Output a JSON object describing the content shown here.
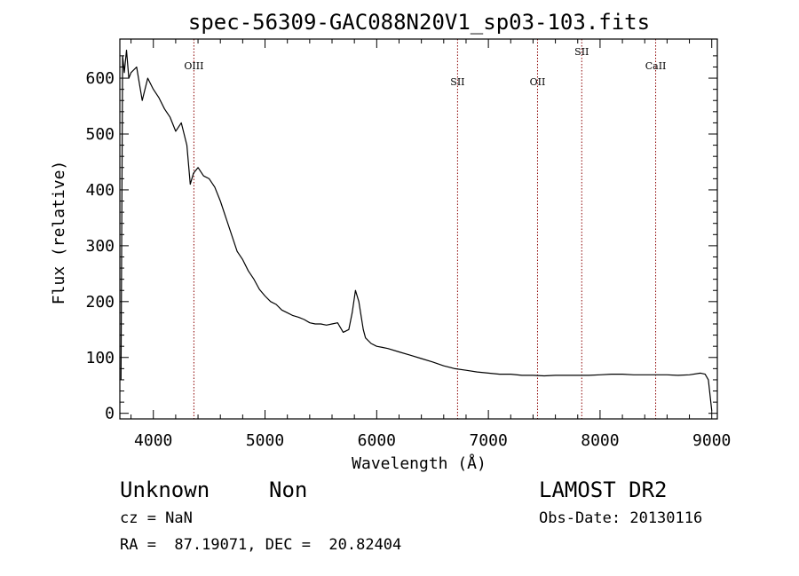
{
  "chart_data": {
    "type": "line",
    "title": "spec-56309-GAC088N20V1_sp03-103.fits",
    "xlabel": "Wavelength (Å)",
    "ylabel": "Flux (relative)",
    "xlim": [
      3700,
      9050
    ],
    "ylim": [
      -10,
      670
    ],
    "xticks": [
      4000,
      5000,
      6000,
      7000,
      8000,
      9000
    ],
    "yticks": [
      0,
      100,
      200,
      300,
      400,
      500,
      600
    ],
    "grid": false,
    "line_color": "#000000",
    "annotation_color": "#8b0000",
    "series": [
      {
        "x": [
          3710,
          3725,
          3740,
          3760,
          3780,
          3800,
          3850,
          3900,
          3950,
          4000,
          4050,
          4100,
          4150,
          4200,
          4250,
          4300,
          4330,
          4360,
          4400,
          4450,
          4500,
          4550,
          4600,
          4650,
          4700,
          4750,
          4800,
          4850,
          4900,
          4950,
          5000,
          5050,
          5100,
          5150,
          5200,
          5250,
          5300,
          5350,
          5400,
          5450,
          5500,
          5550,
          5600,
          5650,
          5700,
          5750,
          5780,
          5810,
          5840,
          5860,
          5880,
          5900,
          5950,
          6000,
          6050,
          6100,
          6200,
          6300,
          6400,
          6500,
          6600,
          6700,
          6800,
          6900,
          7000,
          7100,
          7200,
          7300,
          7400,
          7500,
          7600,
          7700,
          7800,
          7900,
          8000,
          8100,
          8200,
          8300,
          8400,
          8500,
          8600,
          8700,
          8800,
          8900,
          8940,
          8970,
          9000
        ],
        "y": [
          60,
          640,
          610,
          650,
          600,
          610,
          620,
          560,
          600,
          580,
          565,
          545,
          530,
          505,
          520,
          480,
          410,
          430,
          440,
          425,
          420,
          405,
          380,
          350,
          320,
          290,
          275,
          255,
          240,
          222,
          210,
          200,
          195,
          185,
          180,
          175,
          172,
          168,
          162,
          160,
          160,
          158,
          160,
          162,
          145,
          150,
          180,
          220,
          200,
          175,
          150,
          135,
          125,
          120,
          118,
          116,
          110,
          104,
          98,
          92,
          85,
          80,
          77,
          74,
          72,
          70,
          70,
          68,
          68,
          67,
          68,
          68,
          68,
          68,
          69,
          70,
          70,
          69,
          69,
          69,
          69,
          68,
          69,
          72,
          70,
          60,
          5
        ]
      }
    ],
    "annotations": [
      {
        "label": "OIII",
        "x": 4363,
        "label_level": "upper"
      },
      {
        "label": "SII",
        "x": 6724,
        "label_level": "lower"
      },
      {
        "label": "OII",
        "x": 7440,
        "label_level": "lower"
      },
      {
        "label": "SII",
        "x": 7836,
        "label_level": "top"
      },
      {
        "label": "CaII",
        "x": 8498,
        "label_level": "upper"
      }
    ]
  },
  "footer": {
    "object_class": "Unknown",
    "object_subclass": "Non",
    "survey": "LAMOST DR2",
    "redshift": "cz = NaN",
    "obs_date": "Obs-Date: 20130116",
    "coords": "RA =  87.19071, DEC =  20.82404"
  }
}
